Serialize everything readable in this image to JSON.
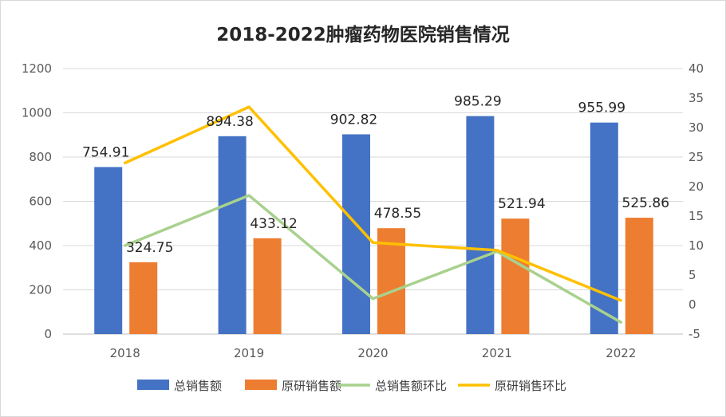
{
  "chart_data": {
    "type": "bar+line",
    "title": "2018-2022肿瘤药物医院销售情况",
    "categories": [
      "2018",
      "2019",
      "2020",
      "2021",
      "2022"
    ],
    "bar_series": [
      {
        "name": "总销售额",
        "color": "#4472C4",
        "values": [
          754.91,
          894.38,
          902.82,
          985.29,
          955.99
        ],
        "labels": [
          "754.91",
          "894.38",
          "902.82",
          "985.29",
          "955.99"
        ],
        "axis": "left"
      },
      {
        "name": "原研销售额",
        "color": "#ED7D31",
        "values": [
          324.75,
          433.12,
          478.55,
          521.94,
          525.86
        ],
        "labels": [
          "324.75",
          "433.12",
          "478.55",
          "521.94",
          "525.86"
        ],
        "axis": "left"
      }
    ],
    "line_series": [
      {
        "name": "总销售额环比",
        "color": "#A9D18E",
        "values": [
          10,
          18.5,
          1,
          9,
          -3
        ],
        "axis": "right"
      },
      {
        "name": "原研销售环比",
        "color": "#FFC000",
        "values": [
          24,
          33.5,
          10.5,
          9.2,
          0.7
        ],
        "axis": "right"
      }
    ],
    "y_left": {
      "min": 0,
      "max": 1200,
      "ticks": [
        "0",
        "200",
        "400",
        "600",
        "800",
        "1000",
        "1200"
      ],
      "tick_values": [
        0,
        200,
        400,
        600,
        800,
        1000,
        1200
      ]
    },
    "y_right": {
      "min": -5,
      "max": 40,
      "ticks": [
        "-5",
        "0",
        "5",
        "10",
        "15",
        "20",
        "25",
        "30",
        "35",
        "40"
      ],
      "tick_values": [
        -5,
        0,
        5,
        10,
        15,
        20,
        25,
        30,
        35,
        40
      ]
    },
    "legend_position": "bottom",
    "grid": true
  }
}
